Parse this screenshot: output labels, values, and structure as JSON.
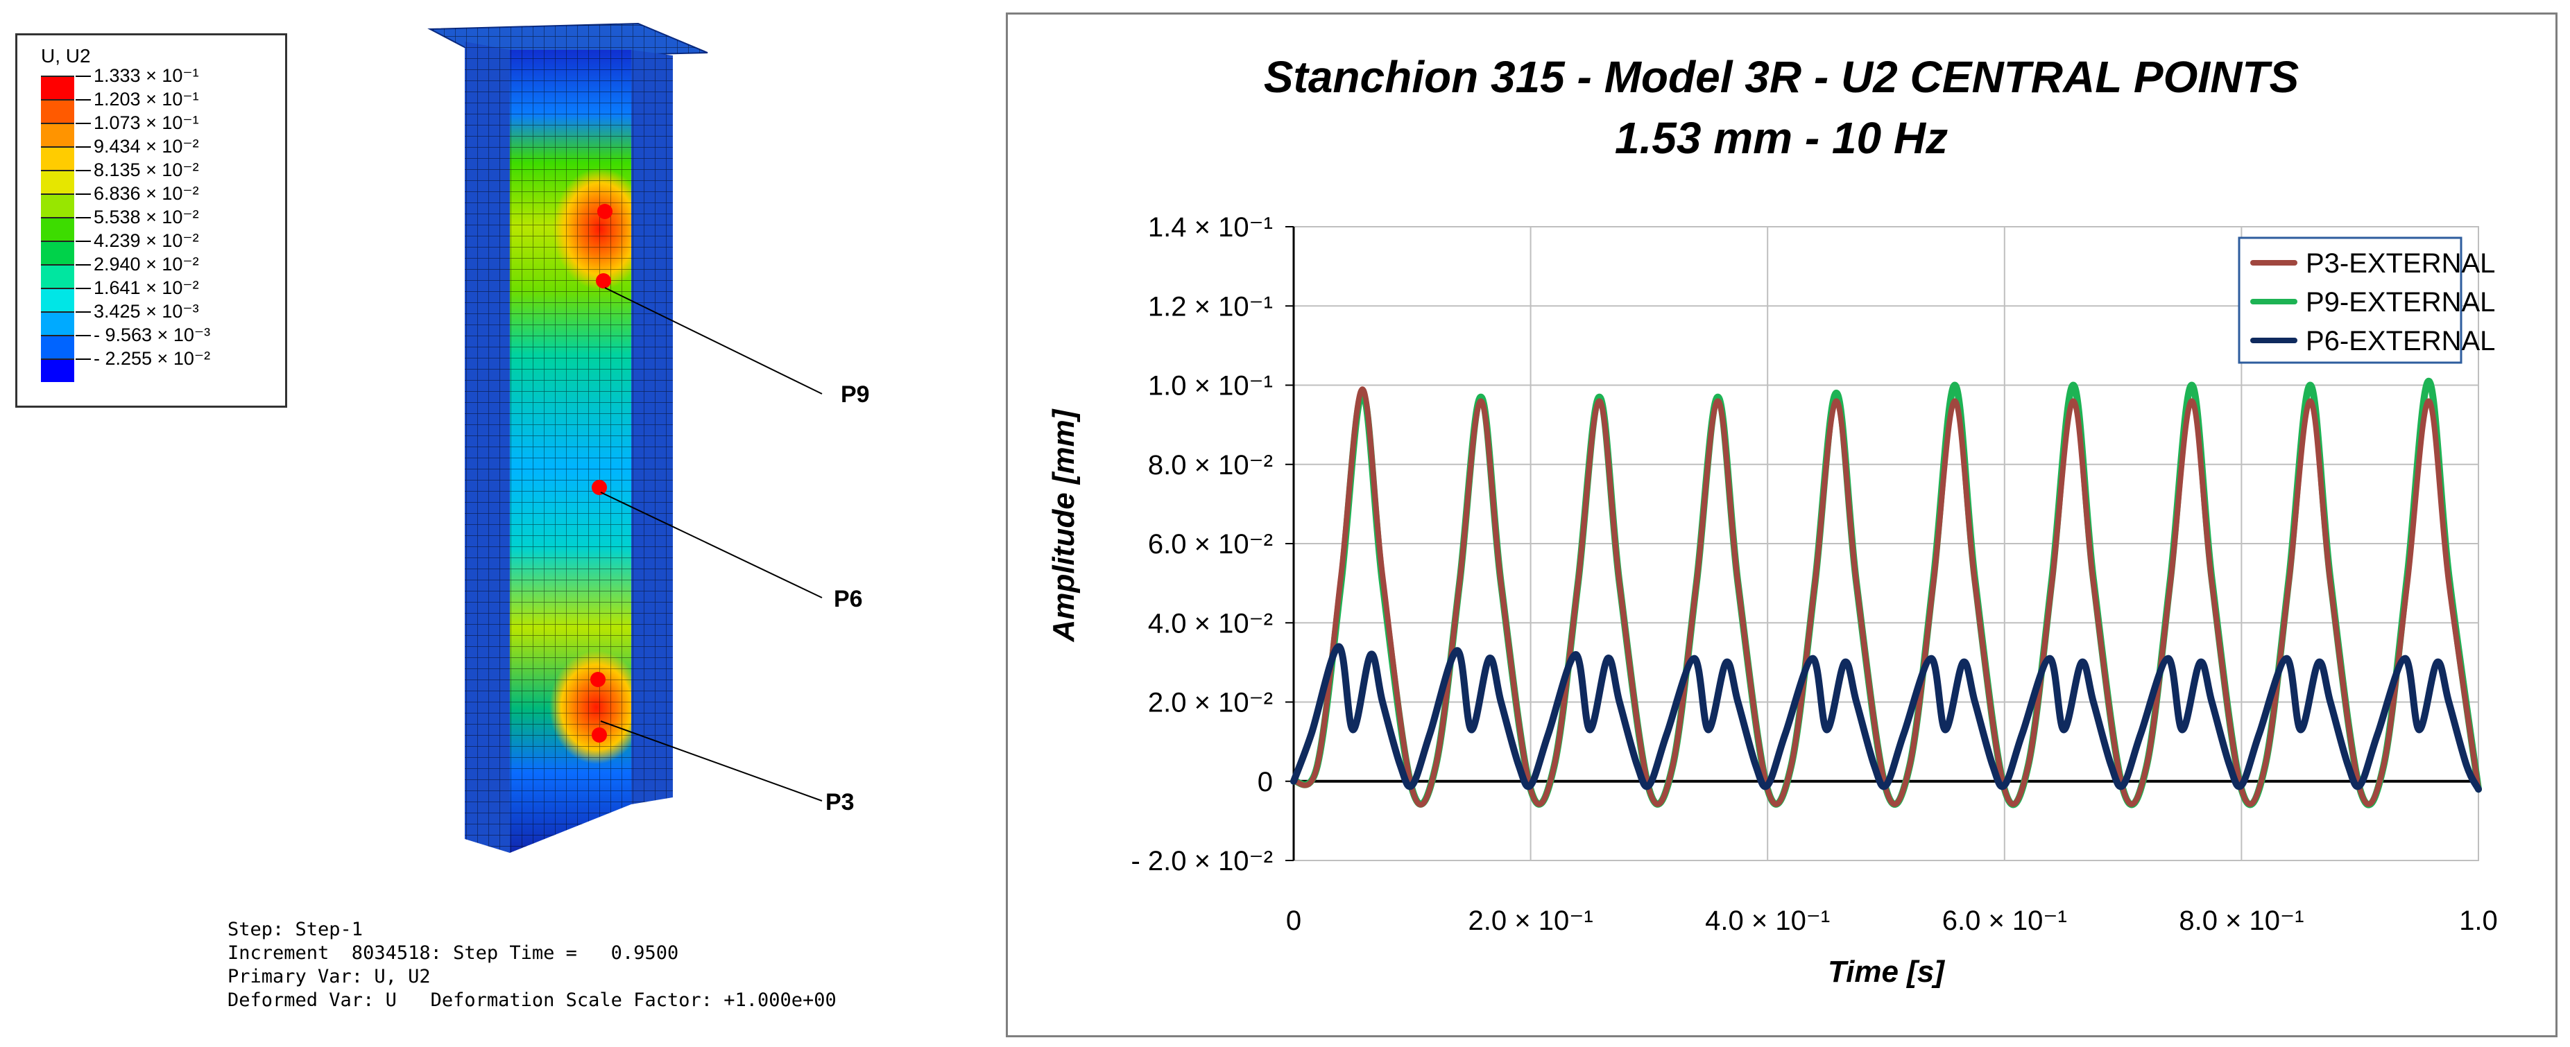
{
  "fem_legend": {
    "title": "U, U2",
    "entries": [
      {
        "color": "#ff0000",
        "label": "1.333 × 10⁻¹"
      },
      {
        "color": "#ff5a00",
        "label": "1.203 × 10⁻¹"
      },
      {
        "color": "#ff9400",
        "label": "1.073 × 10⁻¹"
      },
      {
        "color": "#ffcc00",
        "label": "9.434 × 10⁻²"
      },
      {
        "color": "#e6e600",
        "label": "8.135 × 10⁻²"
      },
      {
        "color": "#98e600",
        "label": "6.836 × 10⁻²"
      },
      {
        "color": "#3ddc00",
        "label": "5.538 × 10⁻²"
      },
      {
        "color": "#00d24a",
        "label": "4.239 × 10⁻²"
      },
      {
        "color": "#00e6a0",
        "label": "2.940 × 10⁻²"
      },
      {
        "color": "#00e6e6",
        "label": "1.641 × 10⁻²"
      },
      {
        "color": "#00aaff",
        "label": "3.425 × 10⁻³"
      },
      {
        "color": "#0064ff",
        "label": "- 9.563 × 10⁻³"
      },
      {
        "color": "#0000ff",
        "label": "- 2.255 × 10⁻²"
      }
    ]
  },
  "points": {
    "p9": "P9",
    "p6": "P6",
    "p3": "P3"
  },
  "step_info": {
    "line1": "Step: Step-1",
    "line2": "Increment  8034518: Step Time =   0.9500",
    "line3": "Primary Var: U, U2",
    "line4": "Deformed Var: U   Deformation Scale Factor: +1.000e+00"
  },
  "colors": {
    "p3": "#a0473f",
    "p9": "#1db354",
    "p6": "#0f2a5e",
    "grid": "#bfbfbf",
    "frame": "#7f7f7f"
  },
  "chart_data": {
    "type": "line",
    "title_line1": "Stanchion 315 - Model 3R - U2 CENTRAL POINTS",
    "title_line2": "1.53 mm - 10 Hz",
    "xlabel": "Time [s]",
    "ylabel": "Amplitude [mm]",
    "xlim": [
      0,
      1.0
    ],
    "ylim": [
      -0.02,
      0.14
    ],
    "x_ticks": [
      {
        "value": 0,
        "label": "0"
      },
      {
        "value": 0.2,
        "label": "2.0 × 10⁻¹"
      },
      {
        "value": 0.4,
        "label": "4.0 × 10⁻¹"
      },
      {
        "value": 0.6,
        "label": "6.0 × 10⁻¹"
      },
      {
        "value": 0.8,
        "label": "8.0 × 10⁻¹"
      },
      {
        "value": 1.0,
        "label": "1.0"
      }
    ],
    "y_ticks": [
      {
        "value": 0.14,
        "label": "1.4 × 10⁻¹"
      },
      {
        "value": 0.12,
        "label": "1.2 × 10⁻¹"
      },
      {
        "value": 0.1,
        "label": "1.0 × 10⁻¹"
      },
      {
        "value": 0.08,
        "label": "8.0 × 10⁻²"
      },
      {
        "value": 0.06,
        "label": "6.0 × 10⁻²"
      },
      {
        "value": 0.04,
        "label": "4.0 × 10⁻²"
      },
      {
        "value": 0.02,
        "label": "2.0 × 10⁻²"
      },
      {
        "value": 0,
        "label": "0"
      },
      {
        "value": -0.02,
        "label": "- 2.0 × 10⁻²"
      }
    ],
    "legend_position": "top-right",
    "series": [
      {
        "name": "P3-EXTERNAL",
        "key": "p3",
        "x": [
          0,
          0.02,
          0.04,
          0.058,
          0.075,
          0.1,
          0.12,
          0.14,
          0.158,
          0.175,
          0.2,
          0.22,
          0.24,
          0.258,
          0.275,
          0.3,
          0.32,
          0.34,
          0.358,
          0.375,
          0.4,
          0.42,
          0.44,
          0.458,
          0.475,
          0.5,
          0.52,
          0.54,
          0.558,
          0.575,
          0.6,
          0.62,
          0.64,
          0.658,
          0.675,
          0.7,
          0.72,
          0.74,
          0.758,
          0.775,
          0.8,
          0.82,
          0.84,
          0.858,
          0.875,
          0.9,
          0.92,
          0.94,
          0.958,
          0.975,
          1.0
        ],
        "y": [
          0,
          0.004,
          0.052,
          0.099,
          0.052,
          -0.002,
          0.004,
          0.05,
          0.096,
          0.05,
          -0.002,
          0.004,
          0.05,
          0.096,
          0.05,
          -0.002,
          0.004,
          0.05,
          0.096,
          0.05,
          -0.002,
          0.004,
          0.05,
          0.096,
          0.05,
          -0.002,
          0.004,
          0.05,
          0.096,
          0.05,
          -0.002,
          0.004,
          0.05,
          0.096,
          0.05,
          -0.002,
          0.004,
          0.05,
          0.096,
          0.05,
          -0.002,
          0.004,
          0.05,
          0.096,
          0.05,
          -0.002,
          0.004,
          0.05,
          0.096,
          0.05,
          -0.002
        ]
      },
      {
        "name": "P9-EXTERNAL",
        "key": "p9",
        "x": [
          0,
          0.02,
          0.04,
          0.058,
          0.075,
          0.1,
          0.12,
          0.14,
          0.158,
          0.175,
          0.2,
          0.22,
          0.24,
          0.258,
          0.275,
          0.3,
          0.32,
          0.34,
          0.358,
          0.375,
          0.4,
          0.42,
          0.44,
          0.458,
          0.475,
          0.5,
          0.52,
          0.54,
          0.558,
          0.575,
          0.6,
          0.62,
          0.64,
          0.658,
          0.675,
          0.7,
          0.72,
          0.74,
          0.758,
          0.775,
          0.8,
          0.82,
          0.84,
          0.858,
          0.875,
          0.9,
          0.92,
          0.94,
          0.958,
          0.975,
          1.0
        ],
        "y": [
          0,
          0.004,
          0.05,
          0.098,
          0.05,
          -0.002,
          0.004,
          0.05,
          0.097,
          0.05,
          -0.002,
          0.004,
          0.05,
          0.097,
          0.05,
          -0.002,
          0.004,
          0.05,
          0.097,
          0.05,
          -0.002,
          0.004,
          0.05,
          0.098,
          0.05,
          -0.002,
          0.004,
          0.051,
          0.1,
          0.051,
          -0.002,
          0.004,
          0.051,
          0.1,
          0.051,
          -0.002,
          0.004,
          0.051,
          0.1,
          0.051,
          -0.002,
          0.004,
          0.051,
          0.1,
          0.051,
          -0.002,
          0.004,
          0.052,
          0.101,
          0.052,
          -0.002
        ]
      },
      {
        "name": "P6-EXTERNAL",
        "key": "p6",
        "x": [
          0,
          0.015,
          0.038,
          0.05,
          0.065,
          0.075,
          0.09,
          0.1,
          0.115,
          0.138,
          0.15,
          0.165,
          0.175,
          0.19,
          0.2,
          0.215,
          0.238,
          0.25,
          0.265,
          0.275,
          0.29,
          0.3,
          0.315,
          0.338,
          0.35,
          0.365,
          0.375,
          0.39,
          0.4,
          0.415,
          0.438,
          0.45,
          0.465,
          0.475,
          0.49,
          0.5,
          0.515,
          0.538,
          0.55,
          0.565,
          0.575,
          0.59,
          0.6,
          0.615,
          0.638,
          0.65,
          0.665,
          0.675,
          0.69,
          0.7,
          0.715,
          0.738,
          0.75,
          0.765,
          0.775,
          0.79,
          0.8,
          0.815,
          0.838,
          0.85,
          0.865,
          0.875,
          0.89,
          0.9,
          0.915,
          0.938,
          0.95,
          0.965,
          0.975,
          0.99,
          1.0
        ],
        "y": [
          0,
          0.012,
          0.034,
          0.013,
          0.032,
          0.02,
          0.004,
          -0.001,
          0.012,
          0.033,
          0.013,
          0.031,
          0.02,
          0.004,
          -0.001,
          0.012,
          0.032,
          0.013,
          0.031,
          0.02,
          0.004,
          -0.001,
          0.012,
          0.031,
          0.013,
          0.03,
          0.02,
          0.004,
          -0.001,
          0.012,
          0.031,
          0.013,
          0.03,
          0.02,
          0.004,
          -0.001,
          0.012,
          0.031,
          0.013,
          0.03,
          0.02,
          0.004,
          -0.001,
          0.012,
          0.031,
          0.013,
          0.03,
          0.02,
          0.004,
          -0.001,
          0.012,
          0.031,
          0.013,
          0.03,
          0.02,
          0.004,
          -0.001,
          0.012,
          0.031,
          0.013,
          0.03,
          0.02,
          0.004,
          -0.001,
          0.012,
          0.031,
          0.013,
          0.03,
          0.02,
          0.004,
          -0.002
        ]
      }
    ]
  }
}
